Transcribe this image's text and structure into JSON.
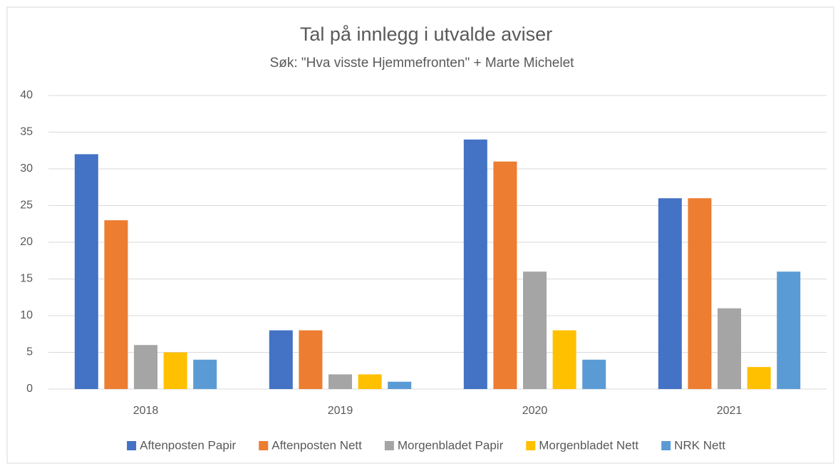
{
  "chart_data": {
    "type": "bar",
    "title": "Tal på innlegg i utvalde aviser",
    "subtitle": "Søk: \"Hva visste Hjemmefronten\" + Marte Michelet",
    "categories": [
      "2018",
      "2019",
      "2020",
      "2021"
    ],
    "series": [
      {
        "name": "Aftenposten Papir",
        "color": "#4472c4",
        "values": [
          32,
          8,
          34,
          26
        ]
      },
      {
        "name": "Aftenposten Nett",
        "color": "#ed7d31",
        "values": [
          23,
          8,
          31,
          26
        ]
      },
      {
        "name": "Morgenbladet Papir",
        "color": "#a5a5a5",
        "values": [
          6,
          2,
          16,
          11
        ]
      },
      {
        "name": "Morgenbladet Nett",
        "color": "#ffc000",
        "values": [
          5,
          2,
          8,
          3
        ]
      },
      {
        "name": "NRK Nett",
        "color": "#5b9bd5",
        "values": [
          4,
          1,
          4,
          16
        ]
      }
    ],
    "ylim": [
      0,
      40
    ],
    "yticks": [
      0,
      5,
      10,
      15,
      20,
      25,
      30,
      35,
      40
    ],
    "grid": true,
    "legend": "bottom"
  }
}
